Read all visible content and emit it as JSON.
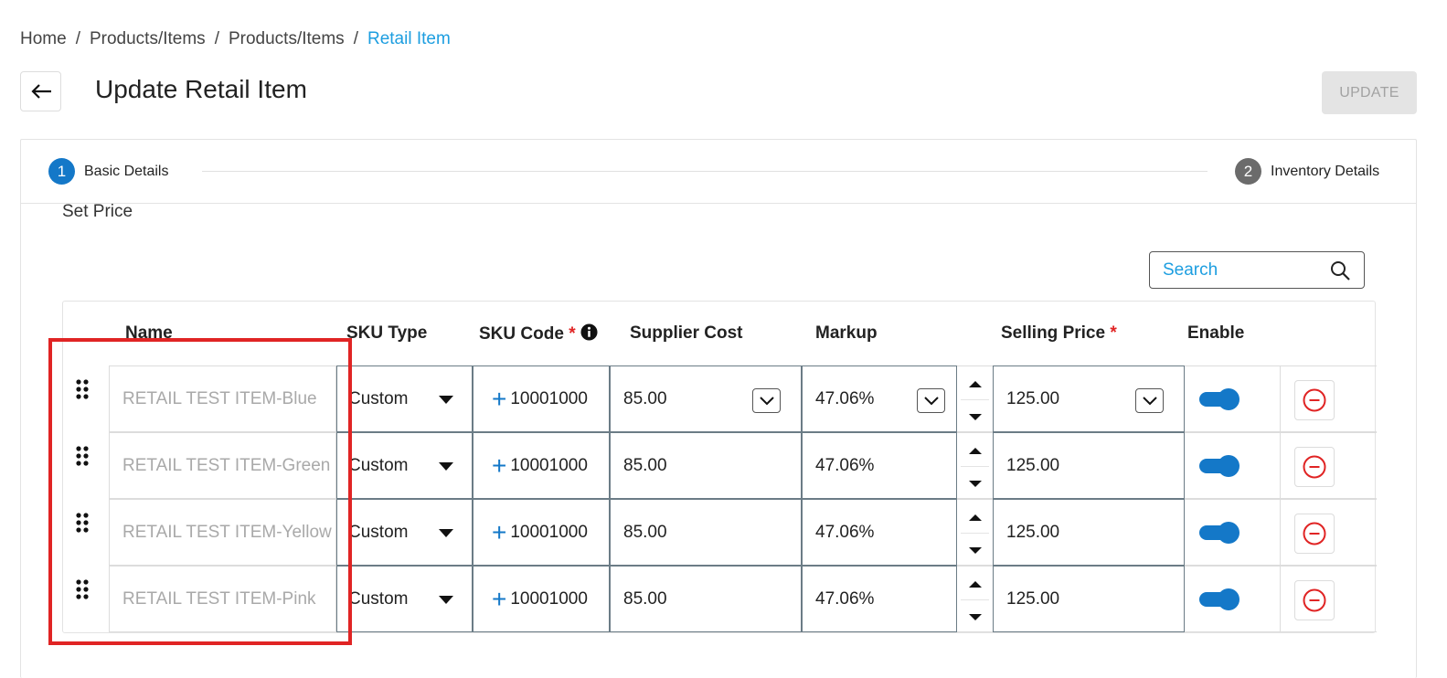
{
  "breadcrumb": {
    "items": [
      "Home",
      "Products/Items",
      "Products/Items"
    ],
    "current": "Retail Item",
    "separator": "/"
  },
  "header": {
    "title": "Update Retail Item",
    "update_label": "UPDATE"
  },
  "stepper": {
    "steps": [
      {
        "number": "1",
        "label": "Basic Details",
        "active": true
      },
      {
        "number": "2",
        "label": "Inventory Details",
        "active": false
      }
    ]
  },
  "section": {
    "title": "Set Price"
  },
  "search": {
    "placeholder": "Search"
  },
  "table": {
    "headers": {
      "name": "Name",
      "sku_type": "SKU Type",
      "sku_code": "SKU Code",
      "supplier_cost": "Supplier Cost",
      "markup": "Markup",
      "selling_price": "Selling Price",
      "enable": "Enable"
    },
    "required_mark": "*",
    "rows": [
      {
        "name": "RETAIL TEST ITEM-Blue",
        "sku_type": "Custom",
        "sku_code": "10001000",
        "supplier_cost": "85.00",
        "markup": "47.06%",
        "selling_price": "125.00",
        "enabled": true
      },
      {
        "name": "RETAIL TEST ITEM-Green",
        "sku_type": "Custom",
        "sku_code": "10001000",
        "supplier_cost": "85.00",
        "markup": "47.06%",
        "selling_price": "125.00",
        "enabled": true
      },
      {
        "name": "RETAIL TEST ITEM-Yellow",
        "sku_type": "Custom",
        "sku_code": "10001000",
        "supplier_cost": "85.00",
        "markup": "47.06%",
        "selling_price": "125.00",
        "enabled": true
      },
      {
        "name": "RETAIL TEST ITEM-Pink",
        "sku_type": "Custom",
        "sku_code": "10001000",
        "supplier_cost": "85.00",
        "markup": "47.06%",
        "selling_price": "125.00",
        "enabled": true
      }
    ]
  },
  "colors": {
    "accent": "#1478c8",
    "link": "#1d9ee0",
    "required": "#e02424",
    "highlight": "#e02424"
  }
}
